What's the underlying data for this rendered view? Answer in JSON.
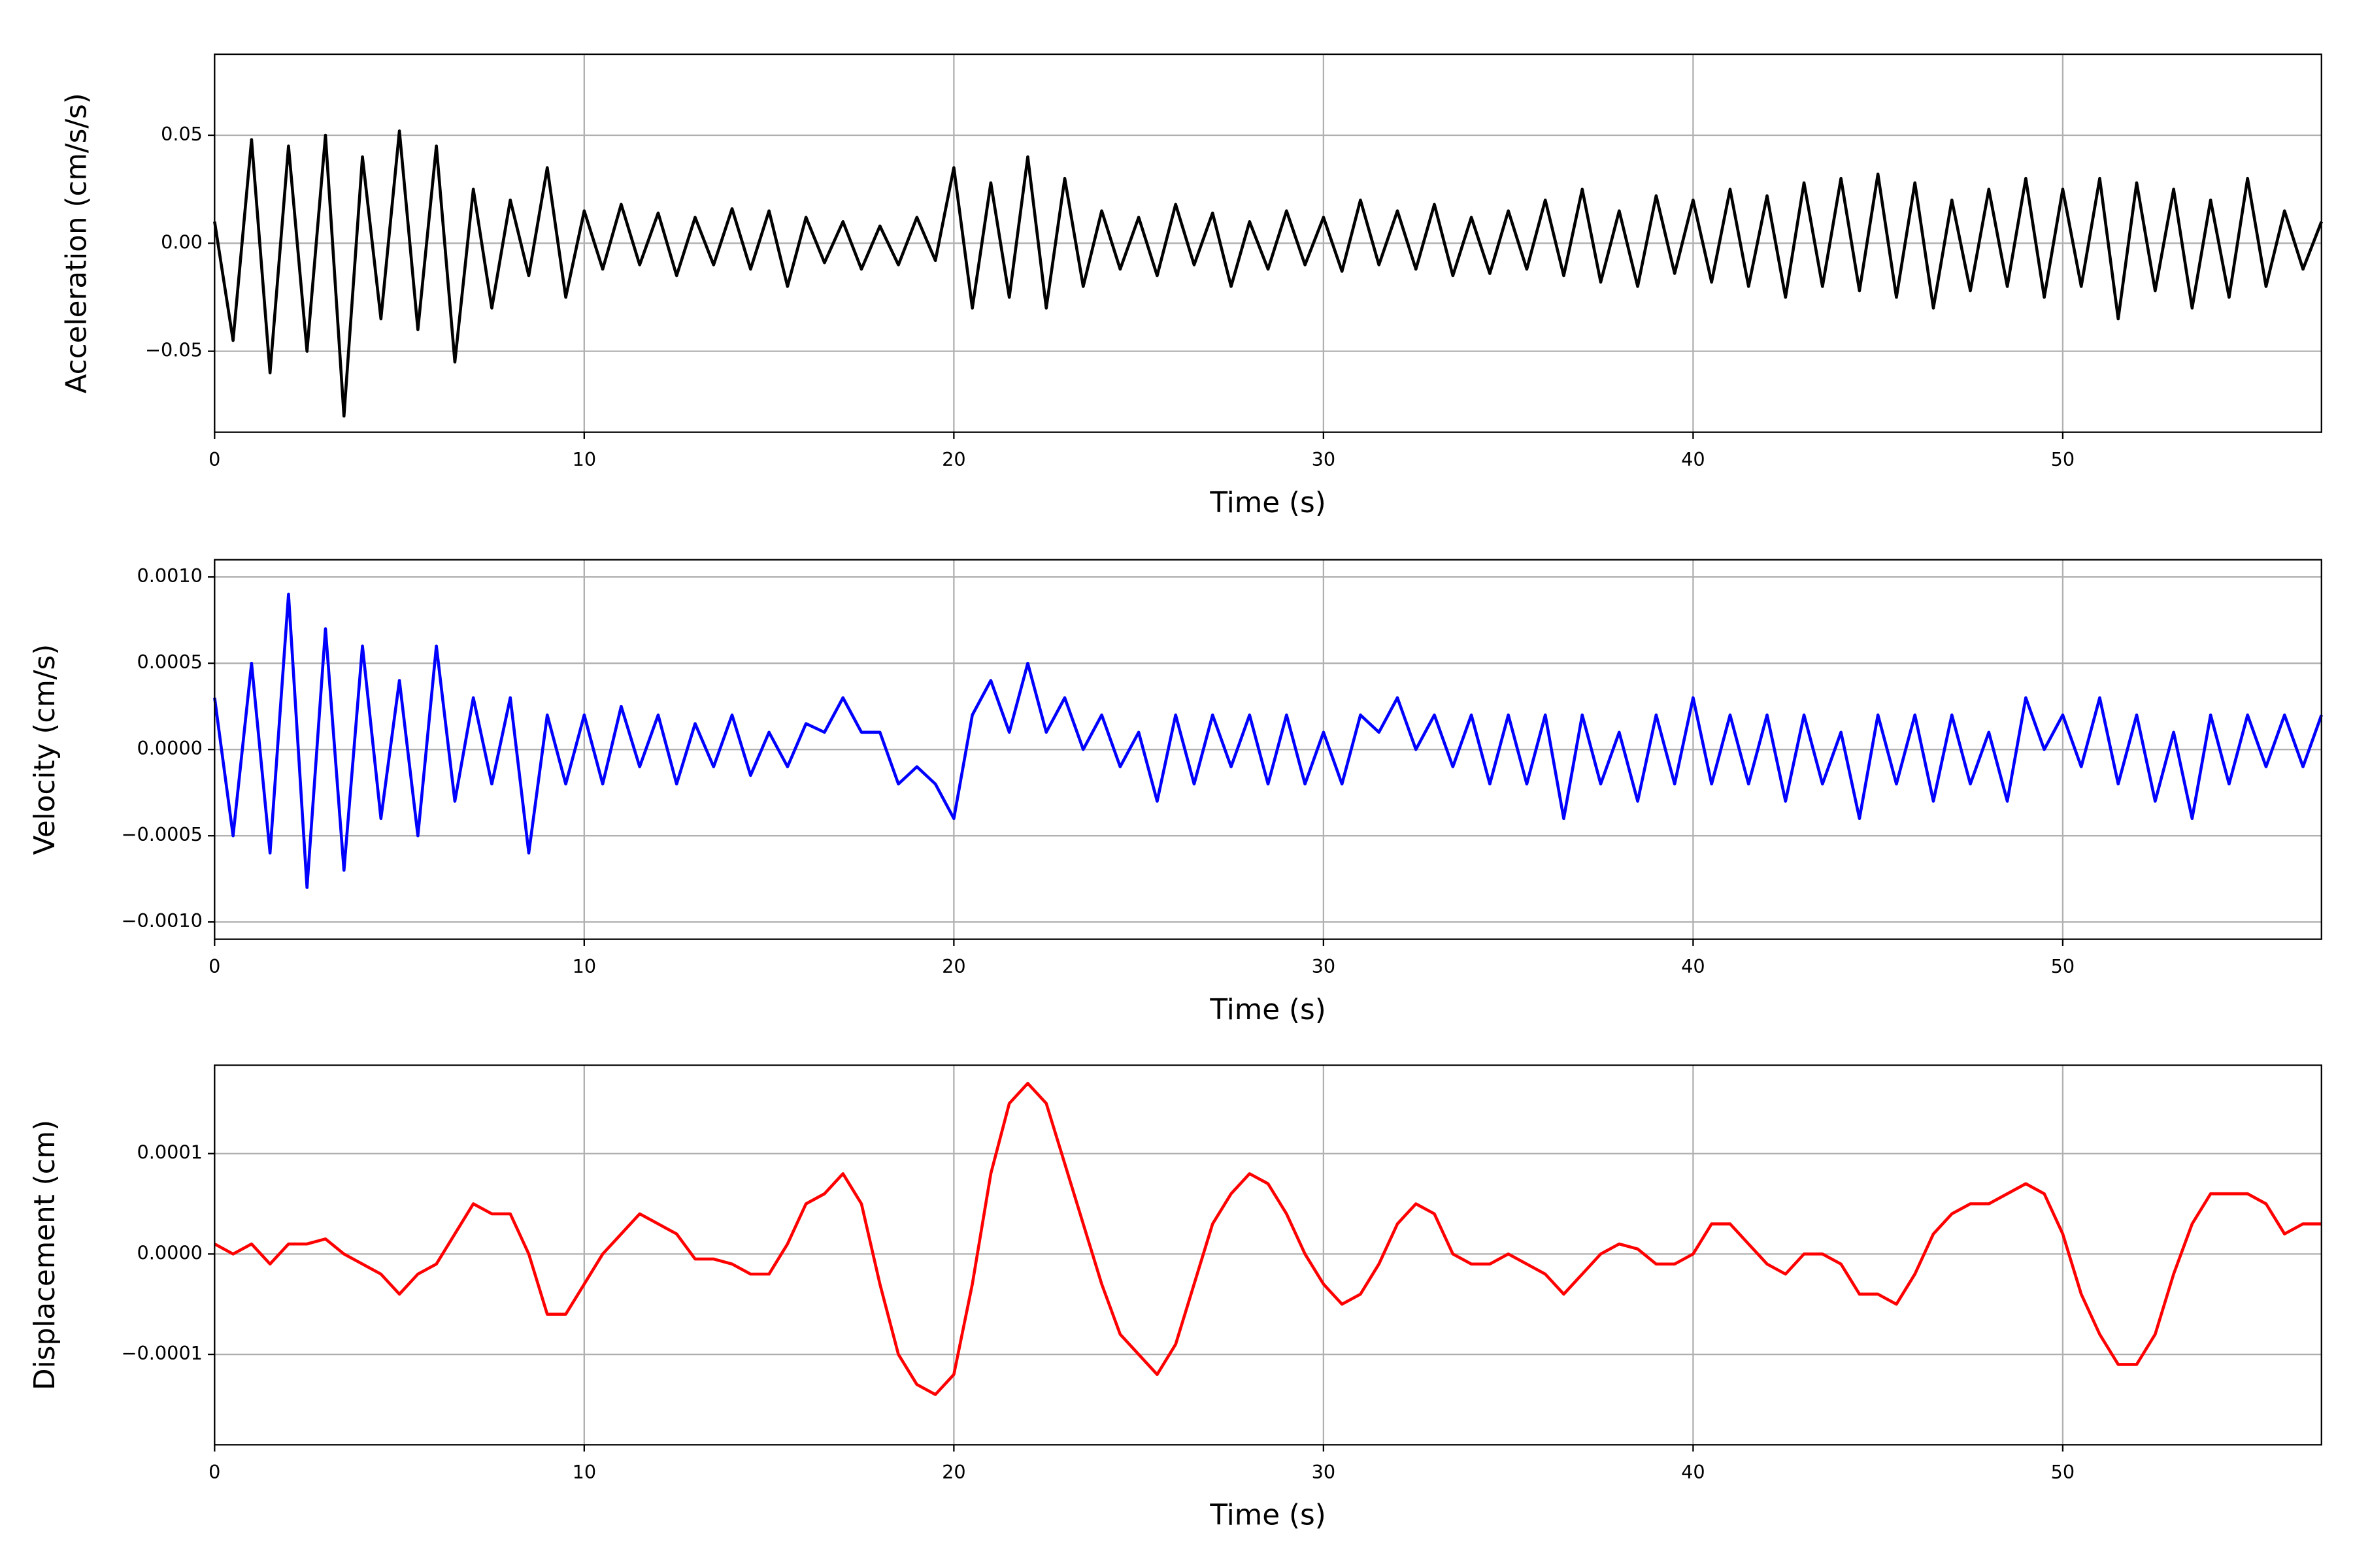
{
  "chart_data": [
    {
      "type": "line",
      "ylabel": "Acceleration (cm/s/s)",
      "xlabel": "Time (s)",
      "color": "#000000",
      "grid": true,
      "xlim": [
        0,
        57
      ],
      "xticks": [
        0,
        10,
        20,
        30,
        40,
        50
      ],
      "ylim": [
        -0.0875,
        0.0875
      ],
      "yticks": [
        {
          "value": -0.05,
          "label": "−0.05"
        },
        {
          "value": 0,
          "label": "0.00"
        },
        0.05
      ],
      "x": [
        0,
        0.5,
        1,
        1.5,
        2,
        2.5,
        3,
        3.5,
        4,
        4.5,
        5,
        5.5,
        6,
        6.5,
        7,
        7.5,
        8,
        8.5,
        9,
        9.5,
        10,
        10.5,
        11,
        11.5,
        12,
        12.5,
        13,
        13.5,
        14,
        14.5,
        15,
        15.5,
        16,
        16.5,
        17,
        17.5,
        18,
        18.5,
        19,
        19.5,
        20,
        20.5,
        21,
        21.5,
        22,
        22.5,
        23,
        23.5,
        24,
        24.5,
        25,
        25.5,
        26,
        26.5,
        27,
        27.5,
        28,
        28.5,
        29,
        29.5,
        30,
        30.5,
        31,
        31.5,
        32,
        32.5,
        33,
        33.5,
        34,
        34.5,
        35,
        35.5,
        36,
        36.5,
        37,
        37.5,
        38,
        38.5,
        39,
        39.5,
        40,
        40.5,
        41,
        41.5,
        42,
        42.5,
        43,
        43.5,
        44,
        44.5,
        45,
        45.5,
        46,
        46.5,
        47,
        47.5,
        48,
        48.5,
        49,
        49.5,
        50,
        50.5,
        51,
        51.5,
        52,
        52.5,
        53,
        53.5,
        54,
        54.5,
        55,
        55.5,
        56,
        56.5,
        57
      ],
      "values": [
        0.01,
        -0.045,
        0.048,
        -0.06,
        0.045,
        -0.05,
        0.05,
        -0.08,
        0.04,
        -0.035,
        0.052,
        -0.04,
        0.045,
        -0.055,
        0.025,
        -0.03,
        0.02,
        -0.015,
        0.035,
        -0.025,
        0.015,
        -0.012,
        0.018,
        -0.01,
        0.014,
        -0.015,
        0.012,
        -0.01,
        0.016,
        -0.012,
        0.015,
        -0.02,
        0.012,
        -0.009,
        0.01,
        -0.012,
        0.008,
        -0.01,
        0.012,
        -0.008,
        0.035,
        -0.03,
        0.028,
        -0.025,
        0.04,
        -0.03,
        0.03,
        -0.02,
        0.015,
        -0.012,
        0.012,
        -0.015,
        0.018,
        -0.01,
        0.014,
        -0.02,
        0.01,
        -0.012,
        0.015,
        -0.01,
        0.012,
        -0.013,
        0.02,
        -0.01,
        0.015,
        -0.012,
        0.018,
        -0.015,
        0.012,
        -0.014,
        0.015,
        -0.012,
        0.02,
        -0.015,
        0.025,
        -0.018,
        0.015,
        -0.02,
        0.022,
        -0.014,
        0.02,
        -0.018,
        0.025,
        -0.02,
        0.022,
        -0.025,
        0.028,
        -0.02,
        0.03,
        -0.022,
        0.032,
        -0.025,
        0.028,
        -0.03,
        0.02,
        -0.022,
        0.025,
        -0.02,
        0.03,
        -0.025,
        0.025,
        -0.02,
        0.03,
        -0.035,
        0.028,
        -0.022,
        0.025,
        -0.03,
        0.02,
        -0.025,
        0.03,
        -0.02,
        0.015,
        -0.012,
        0.01
      ]
    },
    {
      "type": "line",
      "ylabel": "Velocity (cm/s)",
      "xlabel": "Time (s)",
      "color": "#0000ff",
      "grid": true,
      "xlim": [
        0,
        57
      ],
      "xticks": [
        0,
        10,
        20,
        30,
        40,
        50
      ],
      "ylim": [
        -0.0011,
        0.0011
      ],
      "yticks": [
        {
          "value": -0.001,
          "label": "−0.0010"
        },
        {
          "value": -0.0005,
          "label": "−0.0005"
        },
        {
          "value": 0,
          "label": "0.0000"
        },
        {
          "value": 0.0005,
          "label": "0.0005"
        },
        {
          "value": 0.001,
          "label": "0.0010"
        }
      ],
      "x": [
        0,
        0.5,
        1,
        1.5,
        2,
        2.5,
        3,
        3.5,
        4,
        4.5,
        5,
        5.5,
        6,
        6.5,
        7,
        7.5,
        8,
        8.5,
        9,
        9.5,
        10,
        10.5,
        11,
        11.5,
        12,
        12.5,
        13,
        13.5,
        14,
        14.5,
        15,
        15.5,
        16,
        16.5,
        17,
        17.5,
        18,
        18.5,
        19,
        19.5,
        20,
        20.5,
        21,
        21.5,
        22,
        22.5,
        23,
        23.5,
        24,
        24.5,
        25,
        25.5,
        26,
        26.5,
        27,
        27.5,
        28,
        28.5,
        29,
        29.5,
        30,
        30.5,
        31,
        31.5,
        32,
        32.5,
        33,
        33.5,
        34,
        34.5,
        35,
        35.5,
        36,
        36.5,
        37,
        37.5,
        38,
        38.5,
        39,
        39.5,
        40,
        40.5,
        41,
        41.5,
        42,
        42.5,
        43,
        43.5,
        44,
        44.5,
        45,
        45.5,
        46,
        46.5,
        47,
        47.5,
        48,
        48.5,
        49,
        49.5,
        50,
        50.5,
        51,
        51.5,
        52,
        52.5,
        53,
        53.5,
        54,
        54.5,
        55,
        55.5,
        56,
        56.5,
        57
      ],
      "values": [
        0.0003,
        -0.0005,
        0.0005,
        -0.0006,
        0.0009,
        -0.0008,
        0.0007,
        -0.0007,
        0.0006,
        -0.0004,
        0.0004,
        -0.0005,
        0.0006,
        -0.0003,
        0.0003,
        -0.0002,
        0.0003,
        -0.0006,
        0.0002,
        -0.0002,
        0.0002,
        -0.0002,
        0.00025,
        -0.0001,
        0.0002,
        -0.0002,
        0.00015,
        -0.0001,
        0.0002,
        -0.00015,
        0.0001,
        -0.0001,
        0.00015,
        0.0001,
        0.0003,
        0.0001,
        0.0001,
        -0.0002,
        -0.0001,
        -0.0002,
        -0.0004,
        0.0002,
        0.0004,
        0.0001,
        0.0005,
        0.0001,
        0.0003,
        0,
        0.0002,
        -0.0001,
        0.0001,
        -0.0003,
        0.0002,
        -0.0002,
        0.0002,
        -0.0001,
        0.0002,
        -0.0002,
        0.0002,
        -0.0002,
        0.0001,
        -0.0002,
        0.0002,
        0.0001,
        0.0003,
        0,
        0.0002,
        -0.0001,
        0.0002,
        -0.0002,
        0.0002,
        -0.0002,
        0.0002,
        -0.0004,
        0.0002,
        -0.0002,
        0.0001,
        -0.0003,
        0.0002,
        -0.0002,
        0.0003,
        -0.0002,
        0.0002,
        -0.0002,
        0.0002,
        -0.0003,
        0.0002,
        -0.0002,
        0.0001,
        -0.0004,
        0.0002,
        -0.0002,
        0.0002,
        -0.0003,
        0.0002,
        -0.0002,
        0.0001,
        -0.0003,
        0.0003,
        0,
        0.0002,
        -0.0001,
        0.0003,
        -0.0002,
        0.0002,
        -0.0003,
        0.0001,
        -0.0004,
        0.0002,
        -0.0002,
        0.0002,
        -0.0001,
        0.0002,
        -0.0001,
        0.0002
      ]
    },
    {
      "type": "line",
      "ylabel": "Displacement (cm)",
      "xlabel": "Time (s)",
      "color": "#ff0000",
      "grid": true,
      "xlim": [
        0,
        57
      ],
      "xticks": [
        0,
        10,
        20,
        30,
        40,
        50
      ],
      "ylim": [
        -0.00019,
        0.000188
      ],
      "yticks": [
        {
          "value": -0.0001,
          "label": "−0.0001"
        },
        {
          "value": 0,
          "label": "0.0000"
        },
        0.0001
      ],
      "x": [
        0,
        0.5,
        1,
        1.5,
        2,
        2.5,
        3,
        3.5,
        4,
        4.5,
        5,
        5.5,
        6,
        6.5,
        7,
        7.5,
        8,
        8.5,
        9,
        9.5,
        10,
        10.5,
        11,
        11.5,
        12,
        12.5,
        13,
        13.5,
        14,
        14.5,
        15,
        15.5,
        16,
        16.5,
        17,
        17.5,
        18,
        18.5,
        19,
        19.5,
        20,
        20.5,
        21,
        21.5,
        22,
        22.5,
        23,
        23.5,
        24,
        24.5,
        25,
        25.5,
        26,
        26.5,
        27,
        27.5,
        28,
        28.5,
        29,
        29.5,
        30,
        30.5,
        31,
        31.5,
        32,
        32.5,
        33,
        33.5,
        34,
        34.5,
        35,
        35.5,
        36,
        36.5,
        37,
        37.5,
        38,
        38.5,
        39,
        39.5,
        40,
        40.5,
        41,
        41.5,
        42,
        42.5,
        43,
        43.5,
        44,
        44.5,
        45,
        45.5,
        46,
        46.5,
        47,
        47.5,
        48,
        48.5,
        49,
        49.5,
        50,
        50.5,
        51,
        51.5,
        52,
        52.5,
        53,
        53.5,
        54,
        54.5,
        55,
        55.5,
        56,
        56.5,
        57
      ],
      "values": [
        1e-05,
        0,
        1e-05,
        -1e-05,
        1e-05,
        1e-05,
        1.5e-05,
        0,
        -1e-05,
        -2e-05,
        -4e-05,
        -2e-05,
        -1e-05,
        2e-05,
        5e-05,
        4e-05,
        4e-05,
        0,
        -6e-05,
        -6e-05,
        -3e-05,
        0,
        2e-05,
        4e-05,
        3e-05,
        2e-05,
        -5e-06,
        -5e-06,
        -1e-05,
        -2e-05,
        -2e-05,
        1e-05,
        5e-05,
        6e-05,
        8e-05,
        5e-05,
        -3e-05,
        -0.0001,
        -0.00013,
        -0.00014,
        -0.00012,
        -3e-05,
        8e-05,
        0.00015,
        0.00017,
        0.00015,
        9e-05,
        3e-05,
        -3e-05,
        -8e-05,
        -0.0001,
        -0.00012,
        -9e-05,
        -3e-05,
        3e-05,
        6e-05,
        8e-05,
        7e-05,
        4e-05,
        0,
        -3e-05,
        -5e-05,
        -4e-05,
        -1e-05,
        3e-05,
        5e-05,
        4e-05,
        0,
        -1e-05,
        -1e-05,
        0,
        -1e-05,
        -2e-05,
        -4e-05,
        -2e-05,
        0,
        1e-05,
        5e-06,
        -1e-05,
        -1e-05,
        0,
        3e-05,
        3e-05,
        1e-05,
        -1e-05,
        -2e-05,
        0,
        0,
        -1e-05,
        -4e-05,
        -4e-05,
        -5e-05,
        -2e-05,
        2e-05,
        4e-05,
        5e-05,
        5e-05,
        6e-05,
        7e-05,
        6e-05,
        2e-05,
        -4e-05,
        -8e-05,
        -0.00011,
        -0.00011,
        -8e-05,
        -2e-05,
        3e-05,
        6e-05,
        6e-05,
        6e-05,
        5e-05,
        2e-05,
        3e-05,
        3e-05
      ]
    }
  ]
}
